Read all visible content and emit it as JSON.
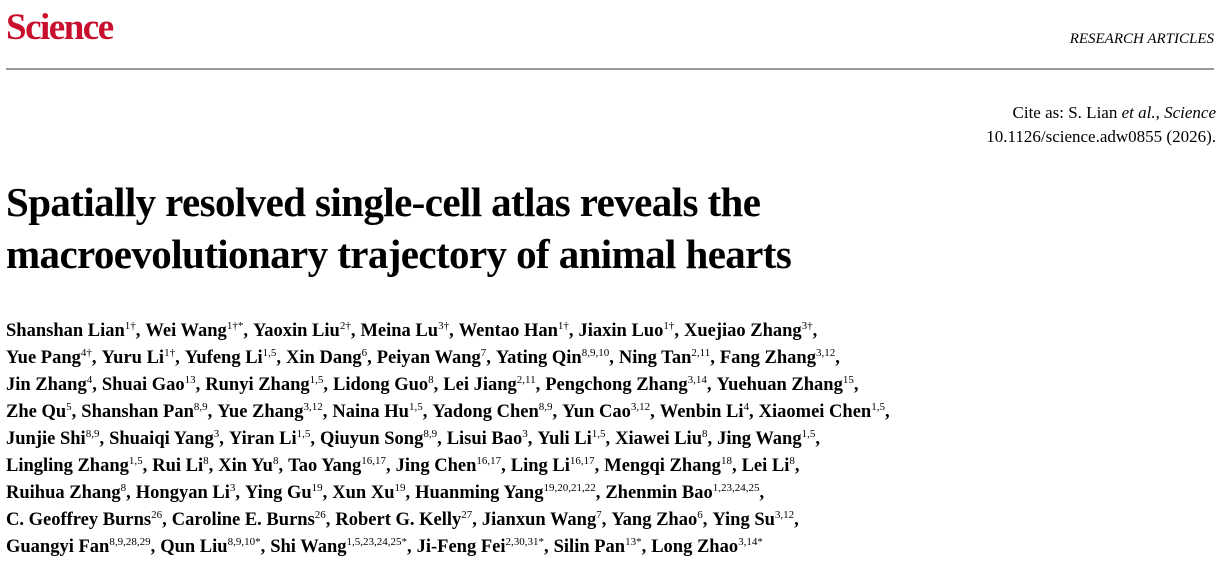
{
  "header": {
    "logo": "Science",
    "section": "RESEARCH ARTICLES"
  },
  "cite": {
    "line1": [
      "Cite as: S. Lian ",
      "et al.",
      ", ",
      "Science"
    ],
    "line2": "10.1126/science.adw0855 (2026)."
  },
  "title": [
    "Spatially resolved single-cell atlas reveals the",
    "macroevolutionary trajectory of animal hearts"
  ],
  "authors": [
    [
      {
        "name": "Shanshan Lian",
        "affil": "1†",
        "sep": ","
      },
      {
        "name": "Wei Wang",
        "affil": "1†*",
        "sep": ","
      },
      {
        "name": "Yaoxin Liu",
        "affil": "2†",
        "sep": ","
      },
      {
        "name": "Meina Lu",
        "affil": "3†",
        "sep": ","
      },
      {
        "name": "Wentao Han",
        "affil": "1†",
        "sep": ","
      },
      {
        "name": "Jiaxin Luo",
        "affil": "1†",
        "sep": ","
      },
      {
        "name": "Xuejiao Zhang",
        "affil": "3†",
        "sep": ","
      }
    ],
    [
      {
        "name": "Yue Pang",
        "affil": "4†",
        "sep": ","
      },
      {
        "name": "Yuru Li",
        "affil": "1†",
        "sep": ","
      },
      {
        "name": "Yufeng Li",
        "affil": "1,5",
        "sep": ","
      },
      {
        "name": "Xin Dang",
        "affil": "6",
        "sep": ","
      },
      {
        "name": "Peiyan Wang",
        "affil": "7",
        "sep": ","
      },
      {
        "name": "Yating Qin",
        "affil": "8,9,10",
        "sep": ","
      },
      {
        "name": "Ning Tan",
        "affil": "2,11",
        "sep": ","
      },
      {
        "name": "Fang Zhang",
        "affil": "3,12",
        "sep": ","
      }
    ],
    [
      {
        "name": "Jin Zhang",
        "affil": "4",
        "sep": ","
      },
      {
        "name": "Shuai Gao",
        "affil": "13",
        "sep": ","
      },
      {
        "name": "Runyi Zhang",
        "affil": "1,5",
        "sep": ","
      },
      {
        "name": "Lidong Guo",
        "affil": "8",
        "sep": ","
      },
      {
        "name": "Lei Jiang",
        "affil": "2,11",
        "sep": ","
      },
      {
        "name": "Pengchong Zhang",
        "affil": "3,14",
        "sep": ","
      },
      {
        "name": "Yuehuan Zhang",
        "affil": "15",
        "sep": ","
      }
    ],
    [
      {
        "name": "Zhe Qu",
        "affil": "5",
        "sep": ","
      },
      {
        "name": "Shanshan Pan",
        "affil": "8,9",
        "sep": ","
      },
      {
        "name": "Yue Zhang",
        "affil": "3,12",
        "sep": ","
      },
      {
        "name": "Naina Hu",
        "affil": "1,5",
        "sep": ","
      },
      {
        "name": "Yadong Chen",
        "affil": "8,9",
        "sep": ","
      },
      {
        "name": "Yun Cao",
        "affil": "3,12",
        "sep": ","
      },
      {
        "name": "Wenbin Li",
        "affil": "4",
        "sep": ","
      },
      {
        "name": "Xiaomei Chen",
        "affil": "1,5",
        "sep": ","
      }
    ],
    [
      {
        "name": "Junjie Shi",
        "affil": "8,9",
        "sep": ","
      },
      {
        "name": "Shuaiqi Yang",
        "affil": "3",
        "sep": ","
      },
      {
        "name": "Yiran Li",
        "affil": "1,5",
        "sep": ","
      },
      {
        "name": "Qiuyun Song",
        "affil": "8,9",
        "sep": ","
      },
      {
        "name": "Lisui Bao",
        "affil": "3",
        "sep": ","
      },
      {
        "name": "Yuli Li",
        "affil": "1,5",
        "sep": ","
      },
      {
        "name": "Xiawei Liu",
        "affil": "8",
        "sep": ","
      },
      {
        "name": "Jing Wang",
        "affil": "1,5",
        "sep": ","
      }
    ],
    [
      {
        "name": "Lingling Zhang",
        "affil": "1,5",
        "sep": ","
      },
      {
        "name": "Rui Li",
        "affil": "8",
        "sep": ","
      },
      {
        "name": "Xin Yu",
        "affil": "8",
        "sep": ","
      },
      {
        "name": "Tao Yang",
        "affil": "16,17",
        "sep": ","
      },
      {
        "name": "Jing Chen",
        "affil": "16,17",
        "sep": ","
      },
      {
        "name": "Ling Li",
        "affil": "16,17",
        "sep": ","
      },
      {
        "name": "Mengqi Zhang",
        "affil": "18",
        "sep": ","
      },
      {
        "name": "Lei Li",
        "affil": "8",
        "sep": ","
      }
    ],
    [
      {
        "name": "Ruihua Zhang",
        "affil": "8",
        "sep": ","
      },
      {
        "name": "Hongyan Li",
        "affil": "3",
        "sep": ","
      },
      {
        "name": "Ying Gu",
        "affil": "19",
        "sep": ","
      },
      {
        "name": "Xun Xu",
        "affil": "19",
        "sep": ","
      },
      {
        "name": "Huanming Yang",
        "affil": "19,20,21,22",
        "sep": ","
      },
      {
        "name": "Zhenmin Bao",
        "affil": "1,23,24,25",
        "sep": ","
      }
    ],
    [
      {
        "name": "C. Geoffrey Burns",
        "affil": "26",
        "sep": ","
      },
      {
        "name": "Caroline E. Burns",
        "affil": "26",
        "sep": ","
      },
      {
        "name": "Robert G. Kelly",
        "affil": "27",
        "sep": ","
      },
      {
        "name": "Jianxun Wang",
        "affil": "7",
        "sep": ","
      },
      {
        "name": "Yang Zhao",
        "affil": "6",
        "sep": ","
      },
      {
        "name": "Ying Su",
        "affil": "3,12",
        "sep": ","
      }
    ],
    [
      {
        "name": "Guangyi Fan",
        "affil": "8,9,28,29",
        "sep": ","
      },
      {
        "name": "Qun Liu",
        "affil": "8,9,10*",
        "sep": ","
      },
      {
        "name": "Shi Wang",
        "affil": "1,5,23,24,25*",
        "sep": ","
      },
      {
        "name": "Ji-Feng Fei",
        "affil": "2,30,31*",
        "sep": ","
      },
      {
        "name": "Silin Pan",
        "affil": "13*",
        "sep": ","
      },
      {
        "name": "Long Zhao",
        "affil": "3,14*"
      }
    ]
  ]
}
